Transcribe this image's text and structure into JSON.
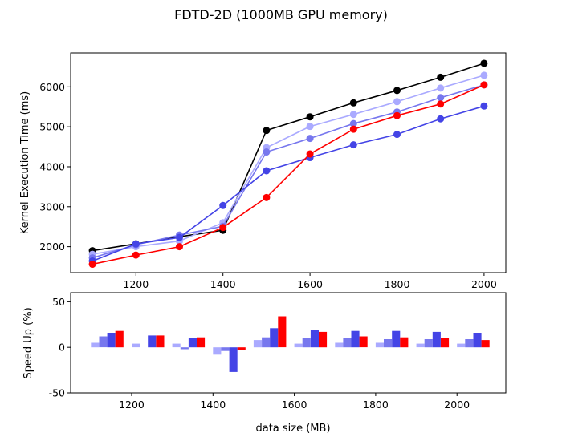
{
  "chart_data": [
    {
      "type": "line",
      "title": "FDTD-2D (1000MB GPU memory)",
      "ylabel": "Kernel Execution Time (ms)",
      "x": [
        1100,
        1200,
        1300,
        1400,
        1500,
        1600,
        1700,
        1800,
        1900,
        2000
      ],
      "xlim": [
        1050,
        2050
      ],
      "ylim": [
        1350,
        6850
      ],
      "xticks": [
        1200,
        1400,
        1600,
        1800,
        2000
      ],
      "yticks": [
        2000,
        3000,
        4000,
        5000,
        6000
      ],
      "grid": false,
      "series": [
        {
          "color": "#000000",
          "values": [
            1900,
            2070,
            2250,
            2410,
            4910,
            5250,
            5600,
            5910,
            6240,
            6590
          ]
        },
        {
          "color": "#aaaaff",
          "values": [
            1810,
            2000,
            2140,
            2600,
            4480,
            5010,
            5310,
            5630,
            5970,
            6290
          ]
        },
        {
          "color": "#7777ee",
          "values": [
            1720,
            2050,
            2290,
            2510,
            4370,
            4710,
            5080,
            5370,
            5730,
            6050
          ]
        },
        {
          "color": "#4444e6",
          "values": [
            1640,
            2070,
            2230,
            3030,
            3900,
            4230,
            4550,
            4810,
            5200,
            5520
          ]
        },
        {
          "color": "#ff0000",
          "values": [
            1560,
            1790,
            2000,
            2480,
            3230,
            4320,
            4940,
            5280,
            5570,
            6050
          ]
        }
      ]
    },
    {
      "type": "bar",
      "xlabel": "data size (MB)",
      "ylabel": "Speed Up (%)",
      "x": [
        1100,
        1200,
        1300,
        1400,
        1500,
        1600,
        1700,
        1800,
        1900,
        2000
      ],
      "xlim": [
        1050,
        2120
      ],
      "ylim": [
        -50,
        60
      ],
      "xticks": [
        1200,
        1400,
        1600,
        1800,
        2000
      ],
      "yticks": [
        -50,
        0,
        50
      ],
      "grid": false,
      "series": [
        {
          "color": "#aaaaff",
          "values": [
            5,
            4,
            4,
            -8,
            8,
            4,
            5,
            5,
            4,
            4
          ]
        },
        {
          "color": "#7777ee",
          "values": [
            12,
            0,
            -2,
            -4,
            11,
            10,
            10,
            9,
            9,
            9
          ]
        },
        {
          "color": "#4444e6",
          "values": [
            16,
            13,
            10,
            -27,
            21,
            19,
            18,
            18,
            17,
            16
          ]
        },
        {
          "color": "#ff0000",
          "values": [
            18,
            13,
            11,
            -3,
            34,
            17,
            12,
            11,
            10,
            8
          ]
        }
      ]
    }
  ]
}
